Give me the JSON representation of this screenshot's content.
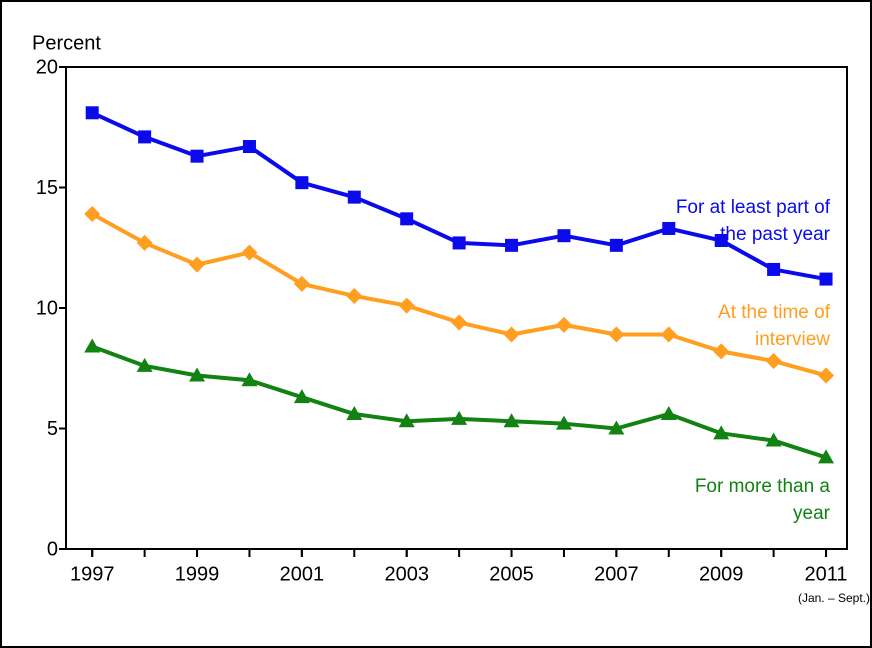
{
  "chart_data": {
    "type": "line",
    "y_label": "Percent",
    "x": [
      1997,
      1998,
      1999,
      2000,
      2001,
      2002,
      2003,
      2004,
      2005,
      2006,
      2007,
      2008,
      2009,
      2010,
      2011
    ],
    "xlim": [
      1996.5,
      2011.4
    ],
    "xticks": [
      1997,
      1999,
      2001,
      2003,
      2005,
      2007,
      2009,
      2011
    ],
    "ylim": [
      0,
      20
    ],
    "yticks": [
      0,
      5,
      10,
      15,
      20
    ],
    "annotations": [
      "(Jan. – Sept.)"
    ],
    "series": [
      {
        "name": "For at least part of the past year",
        "color": "#0a0aeb",
        "marker": "square",
        "values": [
          18.1,
          17.1,
          16.3,
          16.7,
          15.2,
          14.6,
          13.7,
          12.7,
          12.6,
          13.0,
          12.6,
          13.3,
          12.8,
          11.6,
          11.2
        ]
      },
      {
        "name": "At the time of interview",
        "color": "#ff9e1f",
        "marker": "diamond",
        "values": [
          13.9,
          12.7,
          11.8,
          12.3,
          11.0,
          10.5,
          10.1,
          9.4,
          8.9,
          9.3,
          8.9,
          8.9,
          8.2,
          7.8,
          7.2
        ]
      },
      {
        "name": "For more than a year",
        "color": "#128212",
        "marker": "triangle",
        "values": [
          8.4,
          7.6,
          7.2,
          7.0,
          6.3,
          5.6,
          5.3,
          5.4,
          5.3,
          5.2,
          5.0,
          5.6,
          4.8,
          4.5,
          3.8
        ]
      }
    ]
  }
}
